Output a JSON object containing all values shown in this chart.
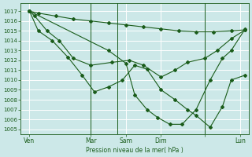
{
  "bg_color": "#cce8e8",
  "grid_color": "#ffffff",
  "line_color": "#1a5c1a",
  "marker_color": "#1a5c1a",
  "xlabel_text": "Pression niveau de la mer( hPa )",
  "ylim": [
    1004.5,
    1017.8
  ],
  "yticks": [
    1005,
    1006,
    1007,
    1008,
    1009,
    1010,
    1011,
    1012,
    1013,
    1014,
    1015,
    1016,
    1017
  ],
  "xlim": [
    0,
    130
  ],
  "xtick_positions": [
    5,
    40,
    60,
    80,
    105,
    125
  ],
  "xtick_labels": [
    "Ven",
    "Mar",
    "Sam",
    "Dim",
    "",
    "Lun"
  ],
  "vlines": [
    40,
    55,
    105
  ],
  "series1_x": [
    5,
    10,
    20,
    30,
    40,
    50,
    60,
    70,
    80,
    90,
    100,
    110,
    120,
    128
  ],
  "series1_y": [
    1017.0,
    1016.8,
    1016.5,
    1016.2,
    1016.0,
    1015.8,
    1015.6,
    1015.4,
    1015.2,
    1015.0,
    1014.9,
    1014.9,
    1015.0,
    1015.1
  ],
  "series2_x": [
    5,
    8,
    15,
    22,
    30,
    40,
    52,
    62,
    70,
    80,
    88,
    95,
    105,
    112,
    120,
    128
  ],
  "series2_y": [
    1017.0,
    1016.5,
    1015.0,
    1014.0,
    1012.2,
    1011.5,
    1011.8,
    1012.0,
    1011.5,
    1010.3,
    1011.0,
    1011.8,
    1012.2,
    1013.0,
    1014.2,
    1015.1
  ],
  "series3_x": [
    5,
    10,
    18,
    27,
    35,
    42,
    50,
    58,
    65,
    72,
    80,
    88,
    95,
    100,
    108,
    115,
    120,
    128
  ],
  "series3_y": [
    1017.0,
    1015.0,
    1014.0,
    1012.3,
    1010.5,
    1008.8,
    1009.3,
    1010.0,
    1011.5,
    1011.1,
    1009.0,
    1008.0,
    1007.0,
    1006.4,
    1005.2,
    1007.3,
    1010.0,
    1010.5
  ],
  "series4_x": [
    5,
    50,
    60,
    65,
    72,
    78,
    85,
    92,
    100,
    108,
    115,
    120,
    128
  ],
  "series4_y": [
    1017.0,
    1013.0,
    1011.7,
    1008.5,
    1007.0,
    1006.2,
    1005.5,
    1005.5,
    1007.0,
    1010.0,
    1012.2,
    1013.0,
    1015.2
  ]
}
